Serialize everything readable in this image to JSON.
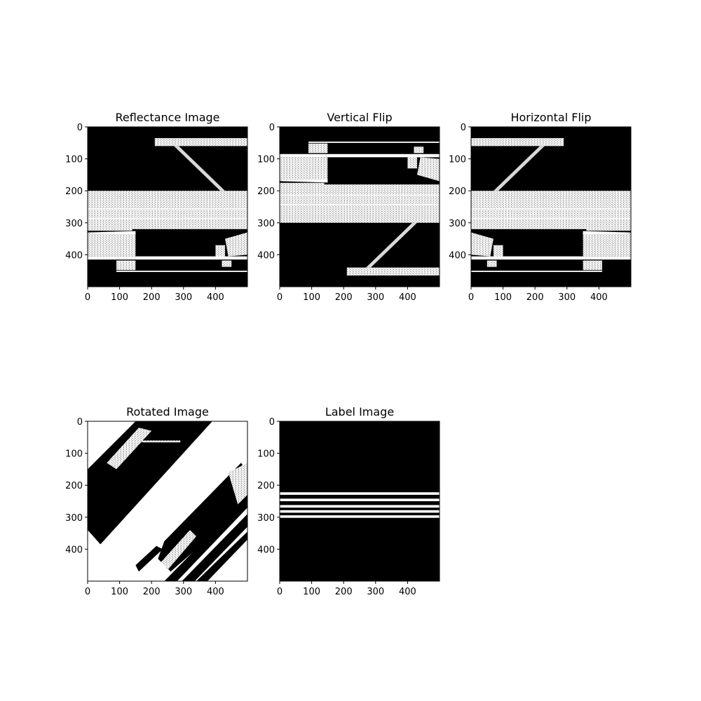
{
  "figure": {
    "background": "#ffffff",
    "pixel_on": "#ffffff",
    "pixel_off": "#000000"
  },
  "panels": [
    {
      "title": "Reflectance Image",
      "x_ticks": [
        "0",
        "100",
        "200",
        "300",
        "400"
      ],
      "y_ticks": [
        "0",
        "100",
        "200",
        "300",
        "400"
      ],
      "extent": [
        0,
        500
      ]
    },
    {
      "title": "Vertical Flip",
      "x_ticks": [
        "0",
        "100",
        "200",
        "300",
        "400"
      ],
      "y_ticks": [
        "0",
        "100",
        "200",
        "300",
        "400"
      ],
      "extent": [
        0,
        500
      ]
    },
    {
      "title": "Horizontal Flip",
      "x_ticks": [
        "0",
        "100",
        "200",
        "300",
        "400"
      ],
      "y_ticks": [
        "0",
        "100",
        "200",
        "300",
        "400"
      ],
      "extent": [
        0,
        500
      ]
    },
    {
      "title": "Rotated Image",
      "x_ticks": [
        "0",
        "100",
        "200",
        "300",
        "400"
      ],
      "y_ticks": [
        "0",
        "100",
        "200",
        "300",
        "400"
      ],
      "extent": [
        0,
        500
      ]
    },
    {
      "title": "Label Image",
      "x_ticks": [
        "0",
        "100",
        "200",
        "300",
        "400"
      ],
      "y_ticks": [
        "0",
        "100",
        "200",
        "300",
        "400"
      ],
      "extent": [
        0,
        500
      ]
    }
  ]
}
